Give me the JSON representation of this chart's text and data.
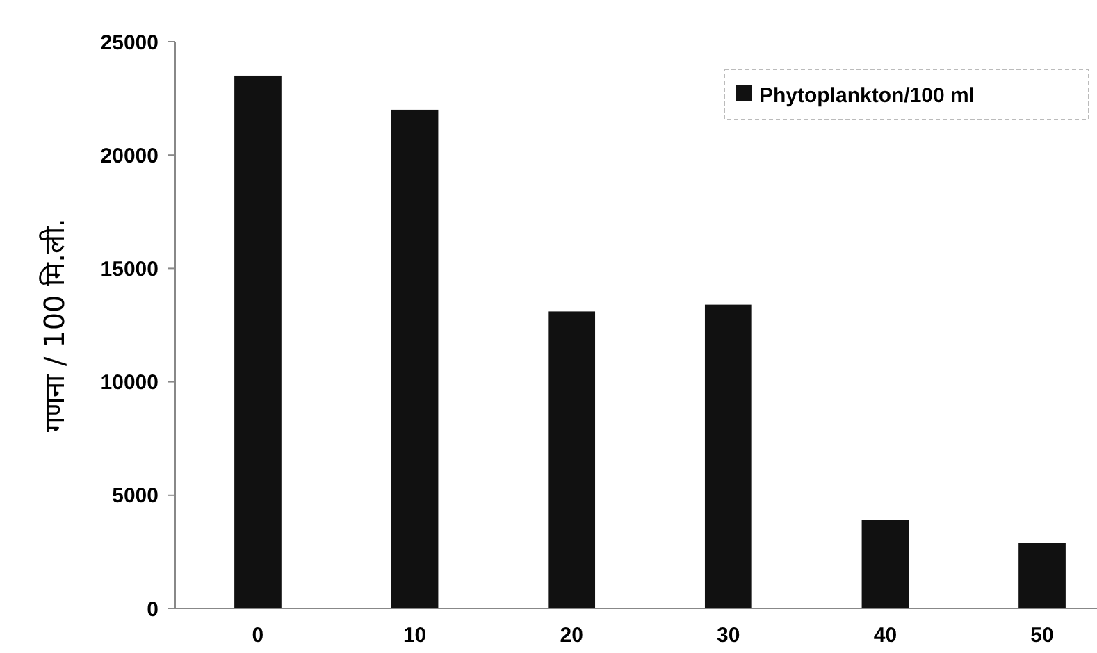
{
  "chart_data": {
    "type": "bar",
    "ylabel": "गणना / 100 मि.ली.",
    "categories": [
      "0",
      "10",
      "20",
      "30",
      "40",
      "50"
    ],
    "series": [
      {
        "name": "Phytoplankton/100 ml",
        "color": "#111111",
        "values": [
          23500,
          22000,
          13100,
          13400,
          3900,
          2900
        ]
      }
    ],
    "ylim": [
      0,
      25000
    ],
    "yticks": [
      0,
      5000,
      10000,
      15000,
      20000,
      25000
    ],
    "legend": "top right"
  }
}
